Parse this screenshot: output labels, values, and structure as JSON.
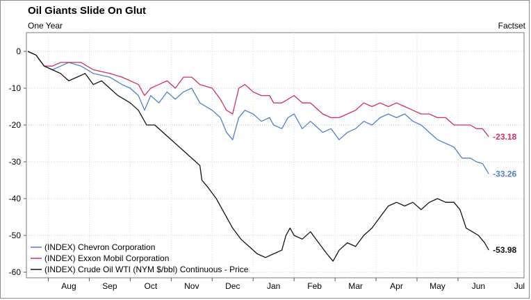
{
  "header": {
    "title": "Oil Giants Slide On Glut",
    "subtitle": "One Year",
    "source": "Factset"
  },
  "chart_data": {
    "type": "line",
    "title": "Oil Giants Slide On Glut",
    "subtitle": "One Year",
    "xlabel": "",
    "ylabel": "",
    "ylim": [
      -60,
      0
    ],
    "yticks": [
      0,
      -10,
      -20,
      -30,
      -40,
      -50,
      -60
    ],
    "xticks": [
      "Aug",
      "Sep",
      "Oct",
      "Nov",
      "Dec",
      "Jan",
      "Feb",
      "Mar",
      "Apr",
      "May",
      "Jun",
      "Jul"
    ],
    "grid": true,
    "legend_position": "bottom-left",
    "series": [
      {
        "name": "(INDEX) Chevron Corporation",
        "color": "#4f7fc8",
        "end_label": "-33.26",
        "points": [
          [
            0.0,
            0
          ],
          [
            0.2,
            -1
          ],
          [
            0.4,
            -4
          ],
          [
            0.6,
            -5
          ],
          [
            0.8,
            -4
          ],
          [
            1.0,
            -3
          ],
          [
            1.3,
            -4
          ],
          [
            1.6,
            -6
          ],
          [
            2.0,
            -7
          ],
          [
            2.3,
            -9
          ],
          [
            2.5,
            -10
          ],
          [
            2.7,
            -12
          ],
          [
            2.85,
            -16
          ],
          [
            3.0,
            -12
          ],
          [
            3.2,
            -14
          ],
          [
            3.4,
            -11
          ],
          [
            3.6,
            -13
          ],
          [
            3.8,
            -11
          ],
          [
            4.0,
            -10
          ],
          [
            4.2,
            -14
          ],
          [
            4.5,
            -16
          ],
          [
            4.7,
            -18
          ],
          [
            4.85,
            -22
          ],
          [
            5.0,
            -24
          ],
          [
            5.15,
            -18
          ],
          [
            5.3,
            -16
          ],
          [
            5.5,
            -17
          ],
          [
            5.7,
            -19
          ],
          [
            5.9,
            -18
          ],
          [
            6.0,
            -20
          ],
          [
            6.2,
            -21
          ],
          [
            6.35,
            -18
          ],
          [
            6.5,
            -17
          ],
          [
            6.7,
            -21
          ],
          [
            6.9,
            -19
          ],
          [
            7.0,
            -20
          ],
          [
            7.2,
            -22
          ],
          [
            7.4,
            -21
          ],
          [
            7.6,
            -24
          ],
          [
            7.8,
            -22
          ],
          [
            8.0,
            -21
          ],
          [
            8.2,
            -19
          ],
          [
            8.4,
            -20
          ],
          [
            8.6,
            -18
          ],
          [
            8.8,
            -17
          ],
          [
            9.0,
            -18
          ],
          [
            9.2,
            -17
          ],
          [
            9.4,
            -19
          ],
          [
            9.6,
            -20
          ],
          [
            9.8,
            -22
          ],
          [
            10.0,
            -24
          ],
          [
            10.2,
            -25
          ],
          [
            10.4,
            -26
          ],
          [
            10.6,
            -29
          ],
          [
            10.8,
            -29
          ],
          [
            10.95,
            -30
          ],
          [
            11.1,
            -30.5
          ],
          [
            11.25,
            -33.26
          ]
        ]
      },
      {
        "name": "(INDEX) Exxon Mobil Corporation",
        "color": "#d0305a",
        "end_label": "-23.18",
        "points": [
          [
            0.0,
            0
          ],
          [
            0.2,
            -1
          ],
          [
            0.4,
            -4
          ],
          [
            0.6,
            -4
          ],
          [
            0.8,
            -3
          ],
          [
            1.0,
            -3
          ],
          [
            1.3,
            -3
          ],
          [
            1.6,
            -5
          ],
          [
            2.0,
            -6
          ],
          [
            2.3,
            -7
          ],
          [
            2.5,
            -8
          ],
          [
            2.7,
            -9
          ],
          [
            2.85,
            -12
          ],
          [
            3.0,
            -10
          ],
          [
            3.2,
            -9
          ],
          [
            3.4,
            -8
          ],
          [
            3.6,
            -10
          ],
          [
            3.8,
            -7
          ],
          [
            4.0,
            -7
          ],
          [
            4.2,
            -9
          ],
          [
            4.5,
            -10
          ],
          [
            4.7,
            -13
          ],
          [
            4.85,
            -16
          ],
          [
            5.0,
            -17
          ],
          [
            5.15,
            -10
          ],
          [
            5.3,
            -9
          ],
          [
            5.5,
            -11
          ],
          [
            5.7,
            -12
          ],
          [
            5.9,
            -12
          ],
          [
            6.0,
            -14
          ],
          [
            6.2,
            -14
          ],
          [
            6.35,
            -13
          ],
          [
            6.5,
            -12
          ],
          [
            6.7,
            -14
          ],
          [
            6.9,
            -14
          ],
          [
            7.0,
            -15
          ],
          [
            7.2,
            -17
          ],
          [
            7.4,
            -18
          ],
          [
            7.6,
            -18
          ],
          [
            7.8,
            -17
          ],
          [
            8.0,
            -16
          ],
          [
            8.2,
            -14
          ],
          [
            8.4,
            -15
          ],
          [
            8.6,
            -14
          ],
          [
            8.8,
            -15
          ],
          [
            9.0,
            -14
          ],
          [
            9.2,
            -15
          ],
          [
            9.4,
            -16
          ],
          [
            9.6,
            -17
          ],
          [
            9.8,
            -17
          ],
          [
            10.0,
            -18
          ],
          [
            10.2,
            -18
          ],
          [
            10.4,
            -20
          ],
          [
            10.6,
            -20
          ],
          [
            10.8,
            -20
          ],
          [
            10.95,
            -21
          ],
          [
            11.1,
            -21
          ],
          [
            11.25,
            -23.18
          ]
        ]
      },
      {
        "name": "(INDEX) Crude Oil WTI (NYM $/bbl) Continuous - Price",
        "color": "#111111",
        "end_label": "-53.98",
        "points": [
          [
            0.0,
            0
          ],
          [
            0.2,
            -1
          ],
          [
            0.4,
            -4
          ],
          [
            0.6,
            -5
          ],
          [
            0.8,
            -6
          ],
          [
            1.0,
            -8
          ],
          [
            1.2,
            -7
          ],
          [
            1.4,
            -6
          ],
          [
            1.6,
            -9
          ],
          [
            1.8,
            -8
          ],
          [
            2.0,
            -10
          ],
          [
            2.2,
            -12
          ],
          [
            2.5,
            -14
          ],
          [
            2.7,
            -16
          ],
          [
            2.8,
            -18
          ],
          [
            2.9,
            -20
          ],
          [
            3.1,
            -20
          ],
          [
            3.3,
            -22
          ],
          [
            3.6,
            -25
          ],
          [
            3.9,
            -28
          ],
          [
            4.1,
            -30
          ],
          [
            4.2,
            -31
          ],
          [
            4.25,
            -35
          ],
          [
            4.4,
            -37
          ],
          [
            4.6,
            -40
          ],
          [
            4.8,
            -44
          ],
          [
            5.0,
            -48
          ],
          [
            5.2,
            -51
          ],
          [
            5.4,
            -53
          ],
          [
            5.6,
            -55
          ],
          [
            5.8,
            -56
          ],
          [
            6.0,
            -55
          ],
          [
            6.2,
            -54
          ],
          [
            6.3,
            -50
          ],
          [
            6.4,
            -48
          ],
          [
            6.5,
            -50
          ],
          [
            6.7,
            -51
          ],
          [
            6.9,
            -49
          ],
          [
            7.1,
            -52
          ],
          [
            7.3,
            -55
          ],
          [
            7.45,
            -57
          ],
          [
            7.6,
            -54
          ],
          [
            7.8,
            -52
          ],
          [
            8.0,
            -53
          ],
          [
            8.2,
            -50
          ],
          [
            8.4,
            -48
          ],
          [
            8.6,
            -45
          ],
          [
            8.8,
            -42
          ],
          [
            9.0,
            -41
          ],
          [
            9.2,
            -42
          ],
          [
            9.4,
            -41
          ],
          [
            9.6,
            -43
          ],
          [
            9.8,
            -41
          ],
          [
            10.0,
            -40
          ],
          [
            10.2,
            -41
          ],
          [
            10.4,
            -41
          ],
          [
            10.55,
            -43
          ],
          [
            10.7,
            -48
          ],
          [
            10.85,
            -49
          ],
          [
            11.0,
            -50
          ],
          [
            11.15,
            -52
          ],
          [
            11.25,
            -53.98
          ]
        ]
      }
    ]
  }
}
